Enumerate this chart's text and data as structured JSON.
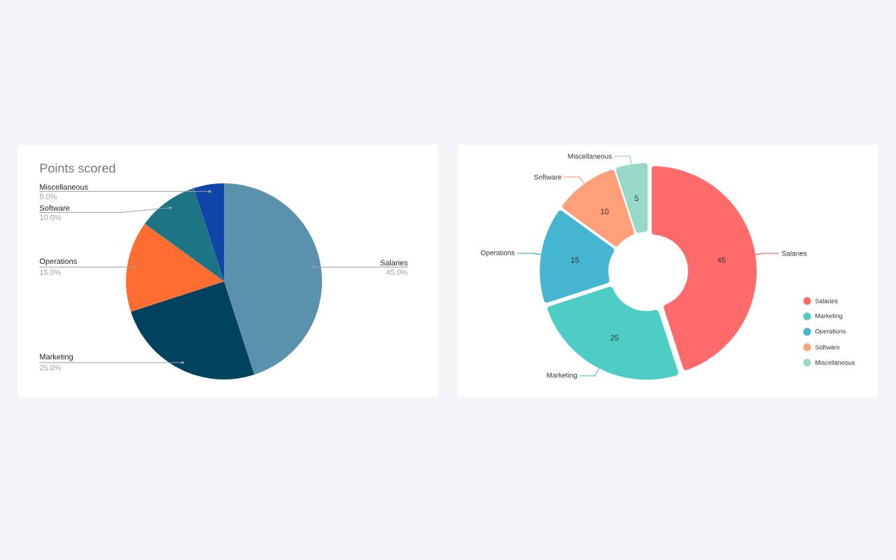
{
  "chart_data": [
    {
      "type": "pie",
      "title": "Points scored",
      "categories": [
        "Salaries",
        "Marketing",
        "Operations",
        "Software",
        "Miscellaneous"
      ],
      "values": [
        45,
        25,
        15,
        10,
        5
      ],
      "colors": [
        "#5a92ae",
        "#01425e",
        "#ff6d31",
        "#1d7484",
        "#0f44a8"
      ],
      "value_labels": [
        "45.0%",
        "25.0%",
        "15.0%",
        "10.0%",
        "5.0%"
      ]
    },
    {
      "type": "donut",
      "categories": [
        "Salaries",
        "Marketing",
        "Operations",
        "Software",
        "Miscellaneous"
      ],
      "values": [
        45,
        25,
        15,
        10,
        5
      ],
      "colors": [
        "#ff6b6b",
        "#4ecdc4",
        "#45b5d1",
        "#ffa07a",
        "#98d8c8"
      ],
      "data_labels": true,
      "legend": "right"
    }
  ]
}
